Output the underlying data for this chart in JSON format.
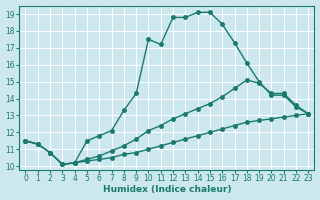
{
  "title": "",
  "xlabel": "Humidex (Indice chaleur)",
  "ylabel": "",
  "bg_color": "#cce8ee",
  "grid_color": "#ffffff",
  "line_color": "#1a7a6e",
  "ylim": [
    9.8,
    19.5
  ],
  "xlim": [
    -0.5,
    23.5
  ],
  "yticks": [
    10,
    11,
    12,
    13,
    14,
    15,
    16,
    17,
    18,
    19
  ],
  "xticks": [
    0,
    1,
    2,
    3,
    4,
    5,
    6,
    7,
    8,
    9,
    10,
    11,
    12,
    13,
    14,
    15,
    16,
    17,
    18,
    19,
    20,
    21,
    22,
    23
  ],
  "line1_x": [
    0,
    1,
    2,
    3,
    4,
    5,
    6,
    7,
    8,
    9,
    10,
    11,
    12,
    13,
    14,
    15,
    16,
    17,
    18,
    19,
    20,
    21,
    22,
    23
  ],
  "line1_y": [
    11.5,
    11.3,
    10.8,
    10.1,
    10.2,
    11.5,
    11.8,
    12.1,
    13.3,
    14.3,
    17.5,
    17.2,
    18.8,
    18.8,
    19.1,
    19.1,
    18.4,
    17.3,
    16.1,
    15.0,
    14.2,
    14.2,
    13.5,
    13.1
  ],
  "line2_x": [
    0,
    1,
    2,
    3,
    4,
    5,
    6,
    7,
    8,
    9,
    10,
    11,
    12,
    13,
    14,
    15,
    16,
    17,
    18,
    19,
    20,
    21,
    22,
    23
  ],
  "line2_y": [
    11.5,
    11.3,
    10.8,
    10.1,
    10.2,
    10.4,
    10.6,
    10.9,
    11.2,
    11.6,
    12.1,
    12.4,
    12.8,
    13.1,
    13.4,
    13.7,
    14.1,
    14.6,
    15.1,
    14.9,
    14.3,
    14.3,
    13.6,
    13.1
  ],
  "line3_x": [
    0,
    1,
    2,
    3,
    4,
    5,
    6,
    7,
    8,
    9,
    10,
    11,
    12,
    13,
    14,
    15,
    16,
    17,
    18,
    19,
    20,
    21,
    22,
    23
  ],
  "line3_y": [
    11.5,
    11.3,
    10.8,
    10.1,
    10.2,
    10.3,
    10.4,
    10.5,
    10.7,
    10.8,
    11.0,
    11.2,
    11.4,
    11.6,
    11.8,
    12.0,
    12.2,
    12.4,
    12.6,
    12.7,
    12.8,
    12.9,
    13.0,
    13.1
  ],
  "marker_size": 2.5,
  "linewidth": 1.0
}
